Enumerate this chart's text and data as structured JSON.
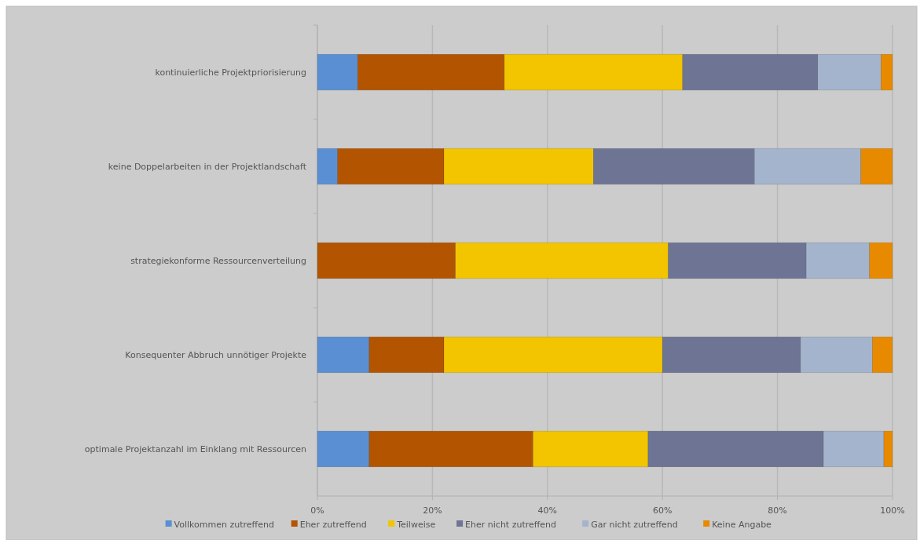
{
  "chart_data": {
    "type": "bar",
    "orientation": "horizontal",
    "stacked": true,
    "categories": [
      "kontinuierliche Projektpriorisierung",
      "keine Doppelarbeiten in der Projektlandschaft",
      "strategiekonforme Ressourcenverteilung",
      "Konsequenter Abbruch unnötiger Projekte",
      "optimale Projektanzahl im Einklang mit Ressourcen"
    ],
    "series": [
      {
        "name": "Vollkommen zutreffend",
        "color": "#5b8fd3",
        "values": [
          7,
          3.5,
          0,
          9,
          9
        ]
      },
      {
        "name": "Eher zutreffend",
        "color": "#b35400",
        "values": [
          25.5,
          18.5,
          24,
          13,
          28.5
        ]
      },
      {
        "name": "Teilweise",
        "color": "#f2c500",
        "values": [
          31,
          26,
          37,
          38,
          20
        ]
      },
      {
        "name": "Eher nicht zutreffend",
        "color": "#6e7594",
        "values": [
          23.5,
          28,
          24,
          24,
          30.5
        ]
      },
      {
        "name": "Gar nicht zutreffend",
        "color": "#a4b4cc",
        "values": [
          11,
          18.5,
          11,
          12.5,
          10.5
        ]
      },
      {
        "name": "Keine Angabe",
        "color": "#e88a00",
        "values": [
          2,
          5.5,
          4,
          3.5,
          1.5
        ]
      }
    ],
    "xlim": [
      0,
      100
    ],
    "xticks": [
      {
        "value": 0,
        "label": "0%"
      },
      {
        "value": 20,
        "label": "20%"
      },
      {
        "value": 40,
        "label": "40%"
      },
      {
        "value": 60,
        "label": "60%"
      },
      {
        "value": 80,
        "label": "80%"
      },
      {
        "value": 100,
        "label": "100%"
      }
    ],
    "grid": "x",
    "legend": "bottom"
  }
}
